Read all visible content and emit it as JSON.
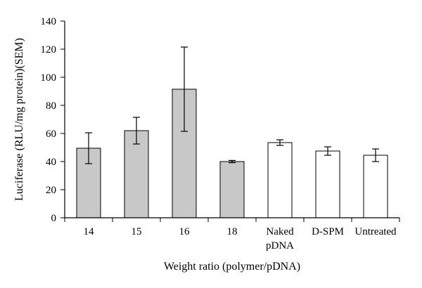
{
  "chart_data": {
    "type": "bar",
    "categories": [
      [
        "14"
      ],
      [
        "15"
      ],
      [
        "16"
      ],
      [
        "18"
      ],
      [
        "Naked",
        "pDNA"
      ],
      [
        "D-SPM"
      ],
      [
        "Untreated"
      ]
    ],
    "values": [
      49.5,
      62,
      91.5,
      40,
      53.5,
      47.5,
      44.5
    ],
    "errors": [
      11,
      9.5,
      30,
      0.8,
      2,
      3,
      4.5
    ],
    "bar_fill": [
      "#c8c8c8",
      "#c8c8c8",
      "#c8c8c8",
      "#c8c8c8",
      "#ffffff",
      "#ffffff",
      "#ffffff"
    ],
    "ylabel": "Luciferase (RLU/mg protein)(SEM)",
    "xlabel": "Weight ratio (polymer/pDNA)",
    "ylim": [
      0,
      140
    ],
    "yticks": [
      0,
      20,
      40,
      60,
      80,
      100,
      120,
      140
    ],
    "grid": false,
    "colors": {
      "axis": "#000000",
      "bar_stroke": "#000000"
    }
  }
}
